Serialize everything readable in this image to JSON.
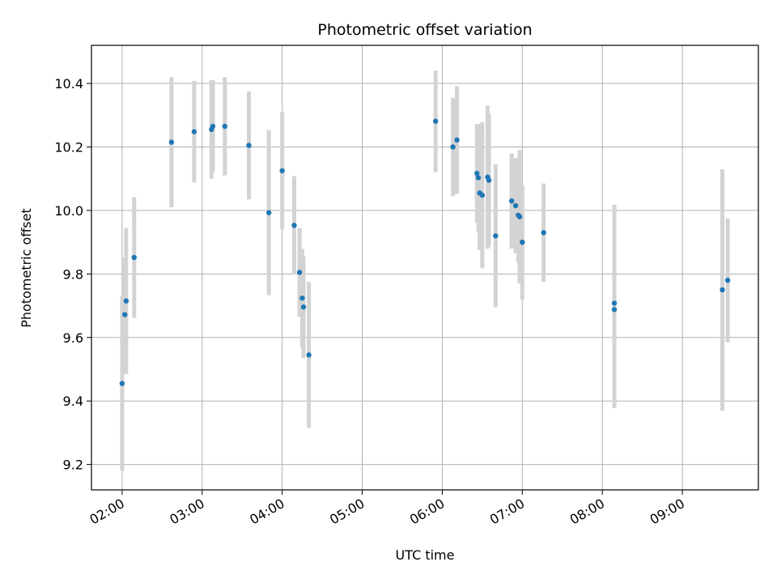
{
  "chart_data": {
    "type": "scatter",
    "title": "Photometric offset variation",
    "xlabel": "UTC time",
    "ylabel": "Photometric offset",
    "grid": true,
    "xlim": [
      "01:37",
      "09:57"
    ],
    "ylim": [
      9.12,
      10.52
    ],
    "xticks": [
      "02:00",
      "03:00",
      "04:00",
      "05:00",
      "06:00",
      "07:00",
      "08:00",
      "09:00"
    ],
    "yticks": [
      "9.2",
      "9.4",
      "9.6",
      "9.8",
      "10.0",
      "10.2",
      "10.4"
    ],
    "point_color": "#1f77b4",
    "errorbar_color": "#d3d3d3",
    "series": [
      {
        "points": [
          {
            "x": "02:00",
            "y": 9.455,
            "err": 0.275
          },
          {
            "x": "02:02",
            "y": 9.672,
            "err": 0.18
          },
          {
            "x": "02:03",
            "y": 9.715,
            "err": 0.23
          },
          {
            "x": "02:09",
            "y": 9.852,
            "err": 0.19
          },
          {
            "x": "02:37",
            "y": 10.215,
            "err": 0.205
          },
          {
            "x": "02:54",
            "y": 10.248,
            "err": 0.16
          },
          {
            "x": "03:07",
            "y": 10.255,
            "err": 0.155
          },
          {
            "x": "03:08",
            "y": 10.265,
            "err": 0.145
          },
          {
            "x": "03:17",
            "y": 10.265,
            "err": 0.155
          },
          {
            "x": "03:35",
            "y": 10.205,
            "err": 0.17
          },
          {
            "x": "03:50",
            "y": 9.993,
            "err": 0.26
          },
          {
            "x": "04:00",
            "y": 10.125,
            "err": 0.185
          },
          {
            "x": "04:09",
            "y": 9.953,
            "err": 0.155
          },
          {
            "x": "04:13",
            "y": 9.805,
            "err": 0.14
          },
          {
            "x": "04:15",
            "y": 9.724,
            "err": 0.155
          },
          {
            "x": "04:16",
            "y": 9.696,
            "err": 0.16
          },
          {
            "x": "04:20",
            "y": 9.545,
            "err": 0.23
          },
          {
            "x": "05:55",
            "y": 10.281,
            "err": 0.16
          },
          {
            "x": "06:08",
            "y": 10.2,
            "err": 0.155
          },
          {
            "x": "06:11",
            "y": 10.222,
            "err": 0.17
          },
          {
            "x": "06:26",
            "y": 10.117,
            "err": 0.155
          },
          {
            "x": "06:27",
            "y": 10.103,
            "err": 0.17
          },
          {
            "x": "06:28",
            "y": 10.055,
            "err": 0.18
          },
          {
            "x": "06:30",
            "y": 10.048,
            "err": 0.23
          },
          {
            "x": "06:34",
            "y": 10.105,
            "err": 0.225
          },
          {
            "x": "06:35",
            "y": 10.095,
            "err": 0.21
          },
          {
            "x": "06:40",
            "y": 9.92,
            "err": 0.225
          },
          {
            "x": "06:52",
            "y": 10.03,
            "err": 0.15
          },
          {
            "x": "06:55",
            "y": 10.015,
            "err": 0.15
          },
          {
            "x": "06:57",
            "y": 9.985,
            "err": 0.15
          },
          {
            "x": "06:58",
            "y": 9.98,
            "err": 0.21
          },
          {
            "x": "07:00",
            "y": 9.9,
            "err": 0.18
          },
          {
            "x": "07:16",
            "y": 9.93,
            "err": 0.155
          },
          {
            "x": "08:09",
            "y": 9.708,
            "err": 0.31
          },
          {
            "x": "08:09",
            "y": 9.688,
            "err": 0.31
          },
          {
            "x": "09:30",
            "y": 9.75,
            "err": 0.38
          },
          {
            "x": "09:34",
            "y": 9.78,
            "err": 0.195
          }
        ]
      }
    ]
  }
}
